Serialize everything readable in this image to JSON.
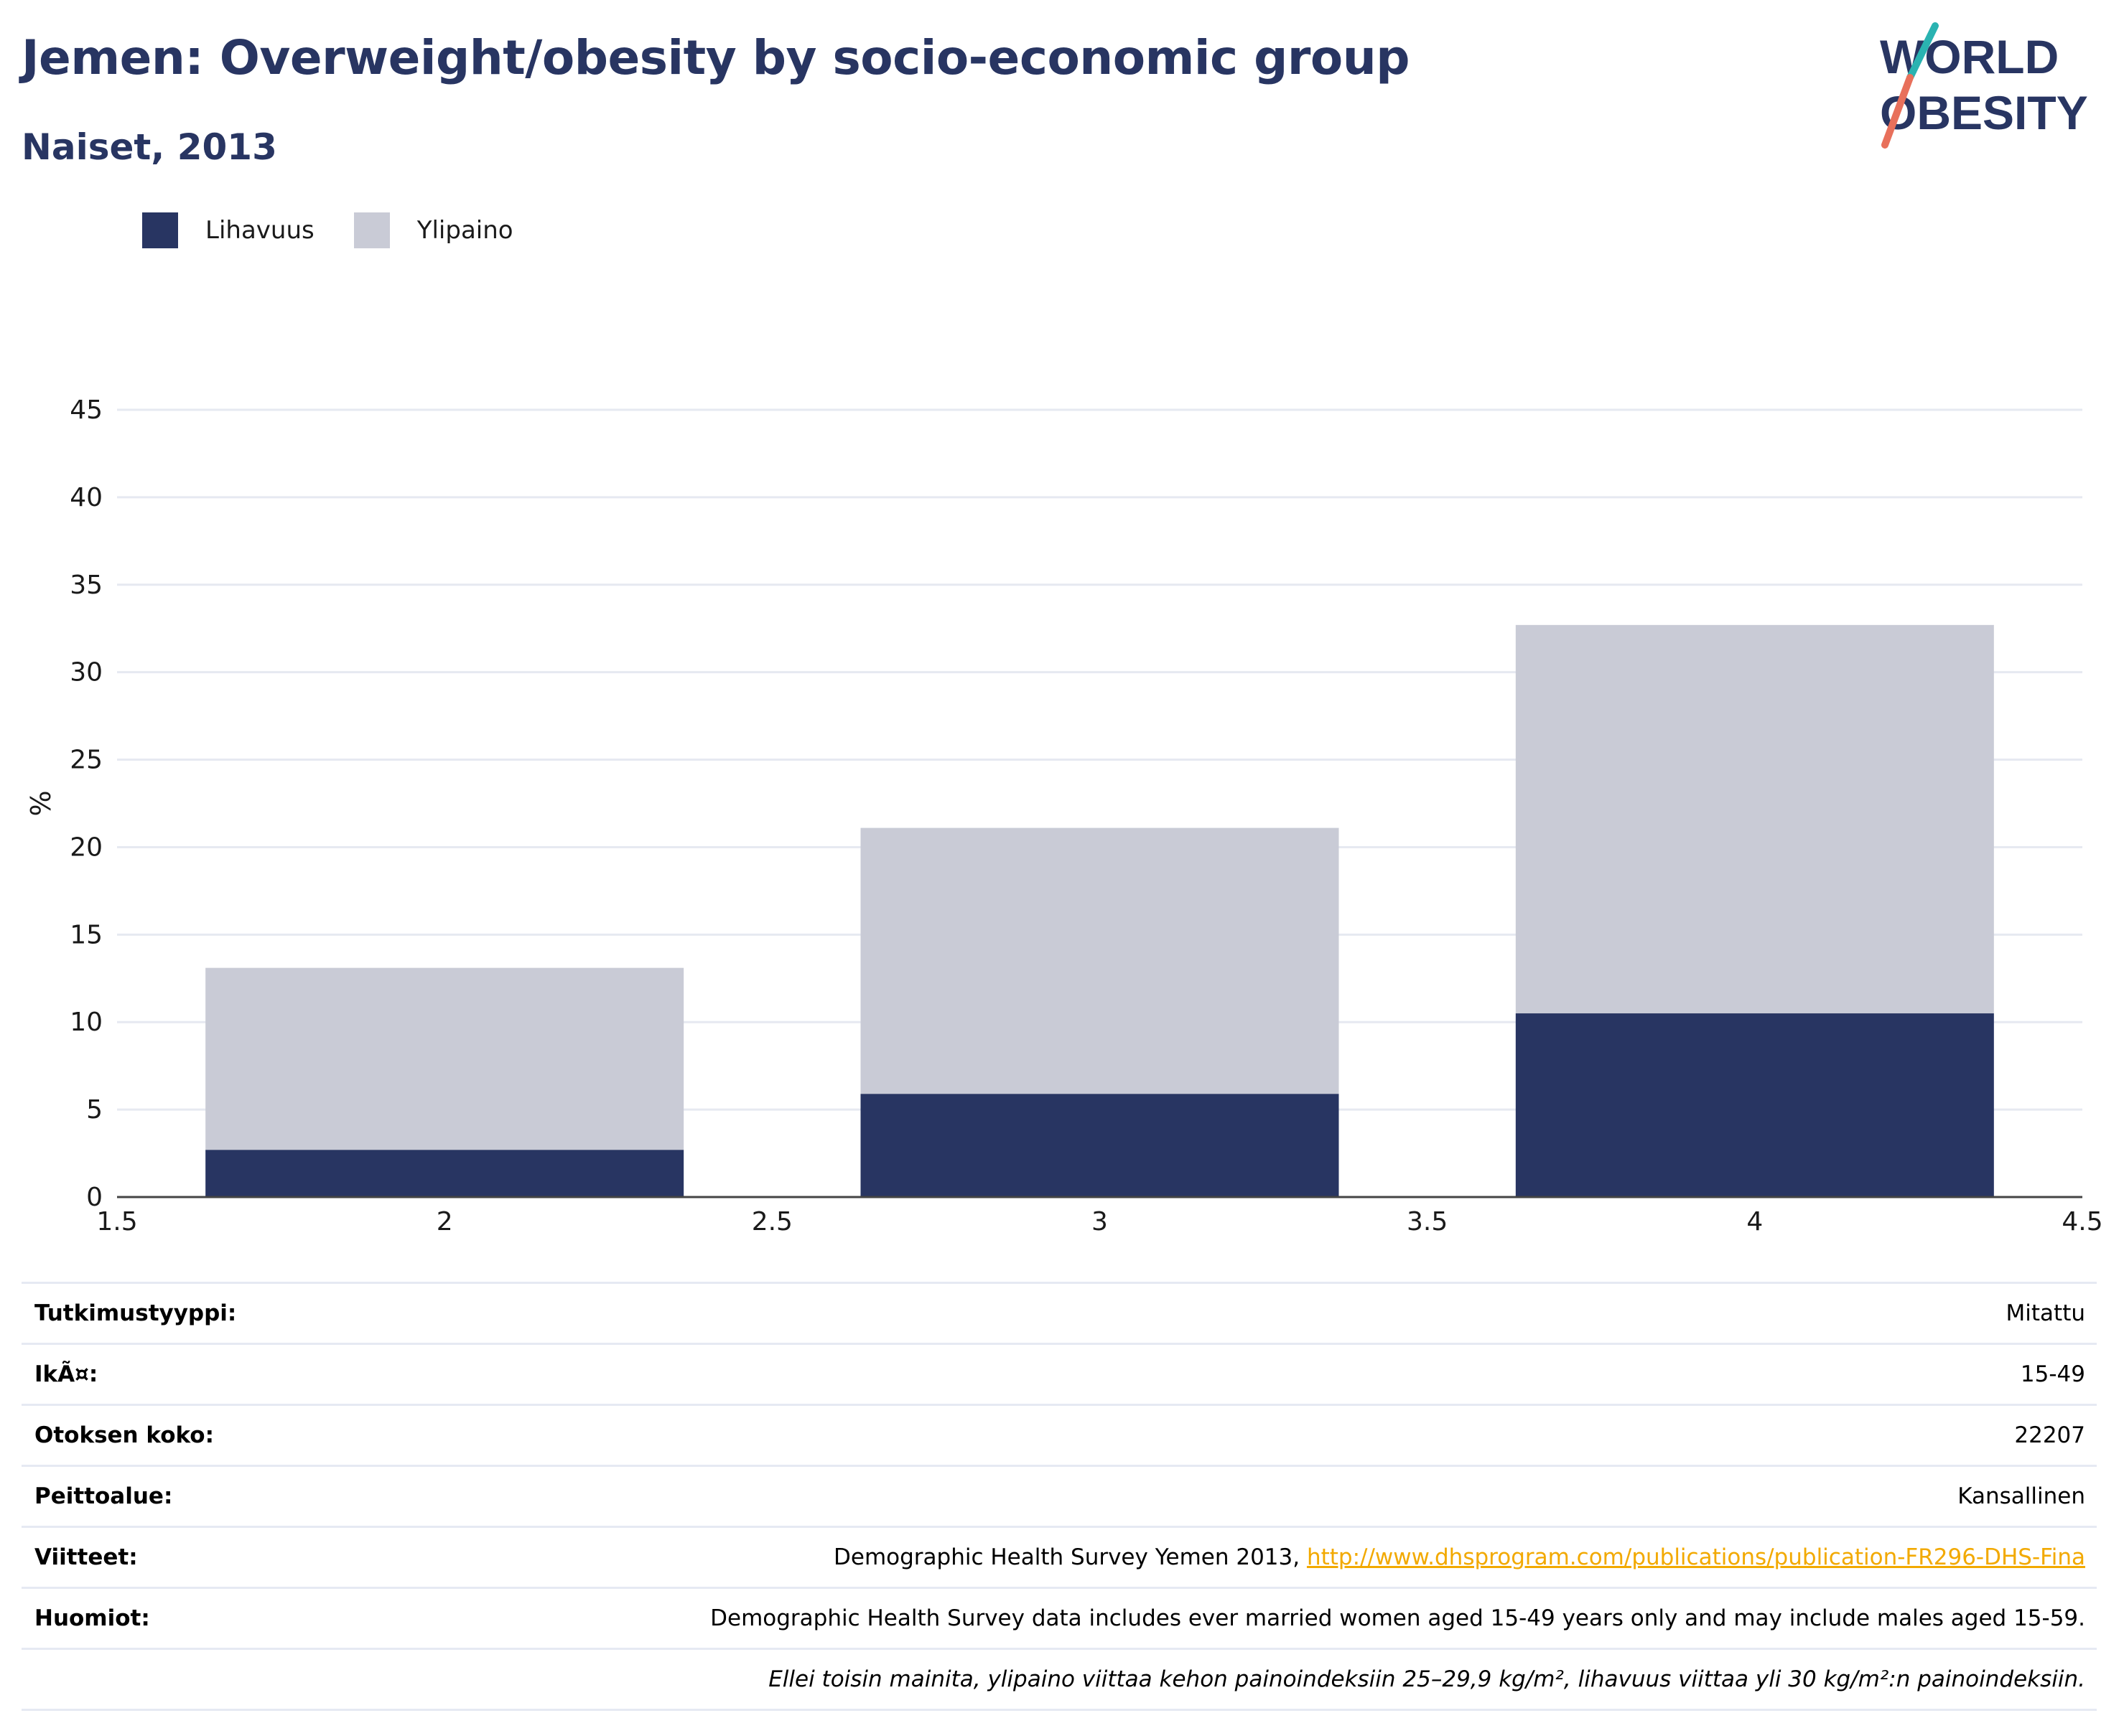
{
  "header": {
    "title": "Jemen: Overweight/obesity by socio-economic group",
    "subtitle": "Naiset, 2013"
  },
  "logo": {
    "line1": "WORLD",
    "line2": "OBESITY",
    "colors": {
      "text": "#283562",
      "teal": "#2ab3b1",
      "coral": "#e8705b"
    }
  },
  "legend": [
    {
      "label": "Lihavuus",
      "color": "#283562"
    },
    {
      "label": "Ylipaino",
      "color": "#c9cbd6"
    }
  ],
  "chart_data": {
    "type": "bar",
    "stacked": true,
    "x": [
      2,
      3,
      4
    ],
    "series": [
      {
        "name": "Lihavuus",
        "color": "#283562",
        "values": [
          2.7,
          5.9,
          10.5
        ]
      },
      {
        "name": "Ylipaino",
        "color": "#c9cbd6",
        "values": [
          10.4,
          15.2,
          22.2
        ]
      }
    ],
    "xlim": [
      1.5,
      4.5
    ],
    "xticks": [
      "1.5",
      "2",
      "2.5",
      "3",
      "3.5",
      "4",
      "4.5"
    ],
    "ylim": [
      0,
      45
    ],
    "yticks": [
      "0",
      "5",
      "10",
      "15",
      "20",
      "25",
      "30",
      "35",
      "40",
      "45"
    ],
    "ylabel": "%",
    "grid": true,
    "legend_position": "top-left"
  },
  "info": [
    {
      "label": "Tutkimustyyppi:",
      "value": "Mitattu"
    },
    {
      "label": "IkÃ¤:",
      "value": "15-49"
    },
    {
      "label": "Otoksen koko:",
      "value": "22207"
    },
    {
      "label": "Peittoalue:",
      "value": "Kansallinen"
    },
    {
      "label": "Viitteet:",
      "value": "Demographic Health Survey Yemen 2013, ",
      "link": "http://www.dhsprogram.com/publications/publication-FR296-DHS-Fina"
    },
    {
      "label": "Huomiot:",
      "value": "Demographic Health Survey data includes ever married women aged 15-49 years only and may include males aged 15-59."
    },
    {
      "label": "",
      "value": "Ellei toisin mainita, ylipaino viittaa kehon painoindeksiin 25–29,9 kg/m², lihavuus viittaa yli 30 kg/m²:n painoindeksiin."
    }
  ]
}
